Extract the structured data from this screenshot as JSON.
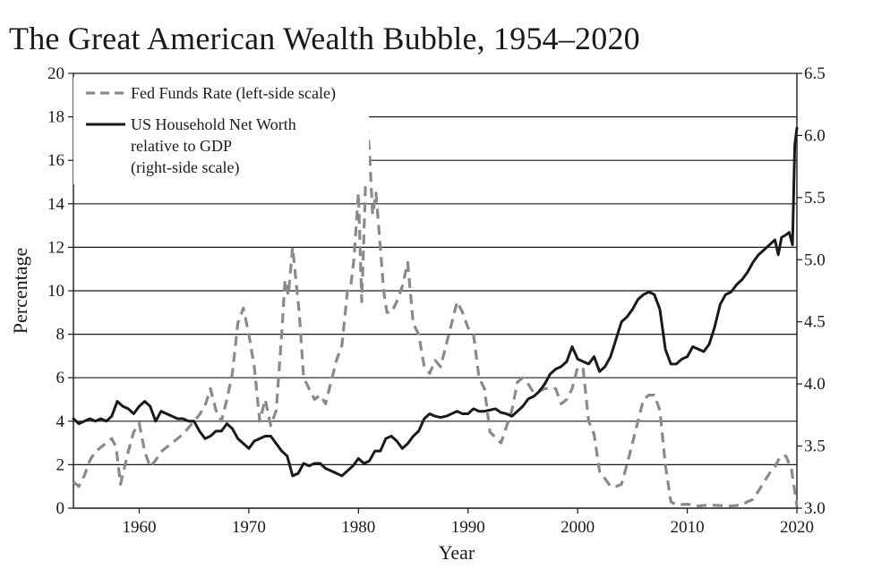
{
  "chart_data": {
    "type": "line",
    "title": "The Great American Wealth Bubble, 1954–2020",
    "xlabel": "Year",
    "ylabel": "Percentage",
    "xlim": [
      1954,
      2020
    ],
    "ylim_left": [
      0,
      20
    ],
    "ylim_right": [
      3.0,
      6.5
    ],
    "x_ticks": [
      1960,
      1970,
      1980,
      1990,
      2000,
      2010,
      2020
    ],
    "x_tick_labels": [
      "1960",
      "1970",
      "1980",
      "1990",
      "2000",
      "2010",
      "2020"
    ],
    "y_ticks_left": [
      0,
      2,
      4,
      6,
      8,
      10,
      12,
      14,
      16,
      18,
      20
    ],
    "y_tick_labels_left": [
      "0",
      "2",
      "4",
      "6",
      "8",
      "10",
      "12",
      "14",
      "16",
      "18",
      "20"
    ],
    "y_ticks_right": [
      3.0,
      3.5,
      4.0,
      4.5,
      5.0,
      5.5,
      6.0,
      6.5
    ],
    "y_tick_labels_right": [
      "3.0",
      "3.5",
      "4.0",
      "4.5",
      "5.0",
      "5.5",
      "6.0",
      "6.5"
    ],
    "grid": "horizontal",
    "legend_position": "top-left",
    "series": [
      {
        "name": "Fed Funds Rate",
        "legend_label": "Fed Funds Rate (left-side scale)",
        "axis": "left",
        "style": "dashed",
        "color": "#8a8a8a",
        "x": [
          1954.0,
          1954.5,
          1955.0,
          1955.5,
          1956.0,
          1956.5,
          1957.0,
          1957.5,
          1957.9,
          1958.3,
          1959.0,
          1959.5,
          1960.0,
          1960.5,
          1961.0,
          1961.5,
          1962.0,
          1963.0,
          1964.0,
          1965.0,
          1965.5,
          1966.0,
          1966.5,
          1967.0,
          1967.5,
          1968.0,
          1968.5,
          1969.0,
          1969.5,
          1970.0,
          1970.5,
          1971.0,
          1971.5,
          1972.0,
          1972.5,
          1973.0,
          1973.3,
          1973.6,
          1974.0,
          1974.3,
          1974.6,
          1975.0,
          1975.5,
          1976.0,
          1976.5,
          1977.0,
          1977.5,
          1978.0,
          1978.5,
          1979.0,
          1979.3,
          1979.6,
          1980.0,
          1980.3,
          1980.5,
          1980.8,
          1981.0,
          1981.3,
          1981.6,
          1982.0,
          1982.3,
          1982.6,
          1983.0,
          1983.5,
          1984.0,
          1984.5,
          1985.0,
          1985.5,
          1986.0,
          1986.5,
          1987.0,
          1987.5,
          1988.0,
          1988.5,
          1989.0,
          1989.5,
          1990.0,
          1990.5,
          1991.0,
          1991.5,
          1992.0,
          1993.0,
          1994.0,
          1994.5,
          1995.0,
          1995.5,
          1996.0,
          1997.0,
          1998.0,
          1998.5,
          1999.0,
          1999.5,
          2000.0,
          2000.5,
          2001.0,
          2001.5,
          2002.0,
          2003.0,
          2003.5,
          2004.0,
          2004.5,
          2005.0,
          2005.5,
          2006.0,
          2006.5,
          2007.0,
          2007.5,
          2008.0,
          2008.5,
          2009.0,
          2010.0,
          2011.0,
          2012.0,
          2013.0,
          2014.0,
          2015.0,
          2015.5,
          2016.0,
          2016.5,
          2017.0,
          2017.5,
          2018.0,
          2018.5,
          2019.0,
          2019.5,
          2020.0
        ],
        "values": [
          1.2,
          1.0,
          1.5,
          2.2,
          2.6,
          2.8,
          3.0,
          3.2,
          2.8,
          1.1,
          2.6,
          3.5,
          3.9,
          2.6,
          1.9,
          2.2,
          2.6,
          3.0,
          3.4,
          4.0,
          4.3,
          4.7,
          5.5,
          4.5,
          4.0,
          5.0,
          6.2,
          8.5,
          9.2,
          8.0,
          6.5,
          4.0,
          5.0,
          3.8,
          4.5,
          8.0,
          10.5,
          9.8,
          12.0,
          10.5,
          9.0,
          6.0,
          5.5,
          5.0,
          5.2,
          4.8,
          5.8,
          6.8,
          7.5,
          10.0,
          10.2,
          11.5,
          14.5,
          9.5,
          12.5,
          17.5,
          16.5,
          13.5,
          14.5,
          12.0,
          10.0,
          9.0,
          9.0,
          9.5,
          10.2,
          11.3,
          8.5,
          8.0,
          6.5,
          6.2,
          6.8,
          6.5,
          7.5,
          8.5,
          9.5,
          9.0,
          8.3,
          8.0,
          6.0,
          5.5,
          3.5,
          3.0,
          4.5,
          5.8,
          6.0,
          5.7,
          5.3,
          5.5,
          5.5,
          4.8,
          5.0,
          5.5,
          6.5,
          6.4,
          4.0,
          3.4,
          1.7,
          1.0,
          1.0,
          1.1,
          2.0,
          3.0,
          4.0,
          5.0,
          5.2,
          5.2,
          4.5,
          2.0,
          0.3,
          0.15,
          0.18,
          0.1,
          0.15,
          0.12,
          0.1,
          0.15,
          0.3,
          0.4,
          0.8,
          1.2,
          1.6,
          1.9,
          2.4,
          2.4,
          1.8,
          0.1
        ]
      },
      {
        "name": "US Household Net Worth relative to GDP",
        "legend_label_lines": [
          "US Household Net Worth",
          "relative to GDP",
          "(right-side scale)"
        ],
        "axis": "right",
        "style": "solid",
        "color": "#1a1a1a",
        "x": [
          1954.0,
          1954.5,
          1955.0,
          1955.5,
          1956.0,
          1956.5,
          1957.0,
          1957.5,
          1958.0,
          1958.5,
          1959.0,
          1959.5,
          1960.0,
          1960.5,
          1961.0,
          1961.5,
          1962.0,
          1962.5,
          1963.0,
          1963.5,
          1964.0,
          1964.5,
          1965.0,
          1965.5,
          1966.0,
          1966.5,
          1967.0,
          1967.5,
          1968.0,
          1968.5,
          1969.0,
          1969.5,
          1970.0,
          1970.5,
          1971.0,
          1971.5,
          1972.0,
          1972.5,
          1973.0,
          1973.5,
          1974.0,
          1974.5,
          1975.0,
          1975.5,
          1976.0,
          1976.5,
          1977.0,
          1977.5,
          1978.0,
          1978.5,
          1979.0,
          1979.5,
          1980.0,
          1980.5,
          1981.0,
          1981.5,
          1982.0,
          1982.5,
          1983.0,
          1983.5,
          1984.0,
          1984.5,
          1985.0,
          1985.5,
          1986.0,
          1986.5,
          1987.0,
          1987.5,
          1988.0,
          1988.5,
          1989.0,
          1989.5,
          1990.0,
          1990.5,
          1991.0,
          1991.5,
          1992.0,
          1992.5,
          1993.0,
          1993.5,
          1994.0,
          1994.5,
          1995.0,
          1995.5,
          1996.0,
          1996.5,
          1997.0,
          1997.5,
          1998.0,
          1998.5,
          1999.0,
          1999.5,
          2000.0,
          2000.5,
          2001.0,
          2001.5,
          2002.0,
          2002.5,
          2003.0,
          2003.5,
          2004.0,
          2004.5,
          2005.0,
          2005.5,
          2006.0,
          2006.5,
          2007.0,
          2007.5,
          2008.0,
          2008.5,
          2009.0,
          2009.5,
          2010.0,
          2010.5,
          2011.0,
          2011.5,
          2012.0,
          2012.5,
          2013.0,
          2013.5,
          2014.0,
          2014.5,
          2015.0,
          2015.5,
          2016.0,
          2016.5,
          2017.0,
          2017.5,
          2018.0,
          2018.3,
          2018.6,
          2019.0,
          2019.3,
          2019.6,
          2019.8,
          2020.0
        ],
        "values": [
          3.72,
          3.68,
          3.7,
          3.72,
          3.7,
          3.72,
          3.7,
          3.74,
          3.86,
          3.82,
          3.8,
          3.76,
          3.82,
          3.86,
          3.82,
          3.7,
          3.78,
          3.76,
          3.74,
          3.72,
          3.72,
          3.7,
          3.7,
          3.62,
          3.56,
          3.58,
          3.62,
          3.62,
          3.68,
          3.64,
          3.56,
          3.52,
          3.48,
          3.54,
          3.56,
          3.58,
          3.58,
          3.52,
          3.46,
          3.42,
          3.26,
          3.28,
          3.36,
          3.34,
          3.36,
          3.36,
          3.32,
          3.3,
          3.28,
          3.26,
          3.3,
          3.34,
          3.4,
          3.36,
          3.38,
          3.46,
          3.46,
          3.56,
          3.58,
          3.54,
          3.48,
          3.52,
          3.58,
          3.62,
          3.72,
          3.76,
          3.74,
          3.73,
          3.74,
          3.76,
          3.78,
          3.76,
          3.76,
          3.8,
          3.78,
          3.78,
          3.79,
          3.8,
          3.77,
          3.76,
          3.74,
          3.78,
          3.82,
          3.88,
          3.9,
          3.94,
          4.0,
          4.08,
          4.12,
          4.14,
          4.18,
          4.3,
          4.2,
          4.18,
          4.16,
          4.22,
          4.1,
          4.14,
          4.22,
          4.36,
          4.5,
          4.54,
          4.6,
          4.68,
          4.72,
          4.74,
          4.72,
          4.6,
          4.28,
          4.16,
          4.16,
          4.2,
          4.22,
          4.3,
          4.28,
          4.26,
          4.32,
          4.46,
          4.64,
          4.72,
          4.74,
          4.8,
          4.84,
          4.9,
          4.98,
          5.04,
          5.08,
          5.12,
          5.16,
          5.04,
          5.18,
          5.2,
          5.22,
          5.12,
          5.92,
          6.06
        ]
      }
    ]
  }
}
